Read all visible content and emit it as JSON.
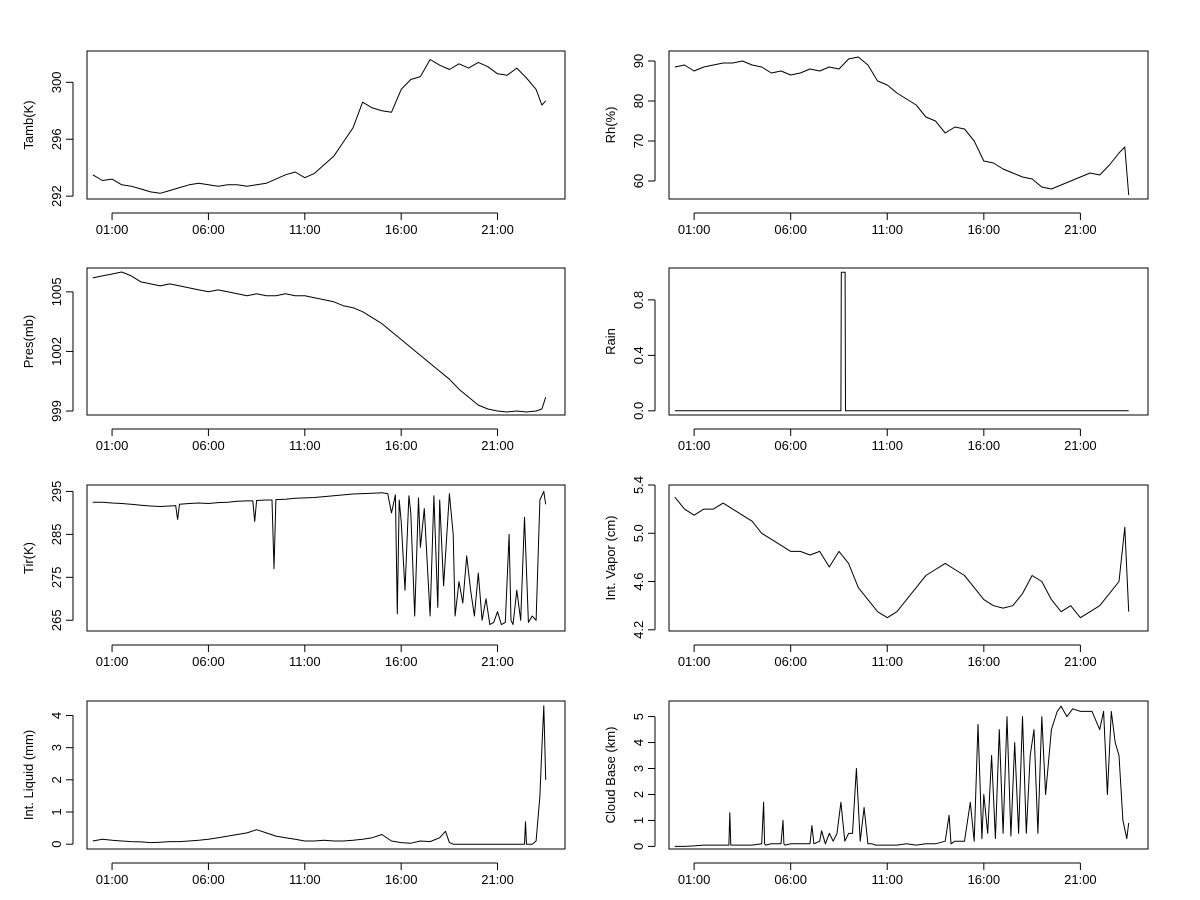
{
  "x_tick_labels": [
    "01:00",
    "06:00",
    "11:00",
    "16:00",
    "21:00"
  ],
  "x_tick_hours": [
    1,
    6,
    11,
    16,
    21
  ],
  "x_range_hours": [
    -0.3,
    24.5
  ],
  "line_color": "#000000",
  "chart_data": [
    {
      "type": "line",
      "ylabel": "Tamb(K)",
      "ylim": [
        291.8,
        302.2
      ],
      "yticks": [
        292,
        296,
        300
      ],
      "ytick_labels": [
        "292",
        "296",
        "300"
      ],
      "x_hours": [
        0.0,
        0.5,
        1.0,
        1.5,
        2.0,
        2.5,
        3.0,
        3.5,
        4.0,
        4.5,
        5.0,
        5.5,
        6.0,
        6.5,
        7.0,
        7.5,
        8.0,
        8.5,
        9.0,
        9.5,
        10.0,
        10.5,
        11.0,
        11.5,
        12.0,
        12.5,
        13.0,
        13.5,
        14.0,
        14.5,
        15.0,
        15.5,
        16.0,
        16.5,
        17.0,
        17.5,
        18.0,
        18.5,
        19.0,
        19.5,
        20.0,
        20.5,
        21.0,
        21.5,
        22.0,
        22.5,
        23.0,
        23.3,
        23.5
      ],
      "values": [
        293.5,
        293.1,
        293.2,
        292.8,
        292.7,
        292.5,
        292.3,
        292.2,
        292.4,
        292.6,
        292.8,
        292.9,
        292.8,
        292.7,
        292.8,
        292.8,
        292.7,
        292.8,
        292.9,
        293.2,
        293.5,
        293.7,
        293.3,
        293.6,
        294.2,
        294.8,
        295.8,
        296.8,
        298.6,
        298.2,
        298.0,
        297.9,
        299.5,
        300.2,
        300.4,
        301.6,
        301.2,
        300.9,
        301.3,
        301.0,
        301.4,
        301.1,
        300.6,
        300.5,
        301.0,
        300.3,
        299.5,
        298.4,
        298.7
      ]
    },
    {
      "type": "line",
      "ylabel": "Rh(%)",
      "ylim": [
        55.5,
        92.5
      ],
      "yticks": [
        60,
        70,
        80,
        90
      ],
      "ytick_labels": [
        "60",
        "70",
        "80",
        "90"
      ],
      "x_hours": [
        0.0,
        0.5,
        1.0,
        1.5,
        2.0,
        2.5,
        3.0,
        3.5,
        4.0,
        4.5,
        5.0,
        5.5,
        6.0,
        6.5,
        7.0,
        7.5,
        8.0,
        8.5,
        9.0,
        9.5,
        10.0,
        10.5,
        11.0,
        11.5,
        12.0,
        12.5,
        13.0,
        13.5,
        14.0,
        14.5,
        15.0,
        15.5,
        16.0,
        16.5,
        17.0,
        17.5,
        18.0,
        18.5,
        19.0,
        19.5,
        20.0,
        20.5,
        21.0,
        21.5,
        22.0,
        22.5,
        23.0,
        23.3,
        23.5
      ],
      "values": [
        88.5,
        89.0,
        87.5,
        88.5,
        89.0,
        89.5,
        89.5,
        90.0,
        89.0,
        88.5,
        87.0,
        87.5,
        86.5,
        87.0,
        88.0,
        87.5,
        88.5,
        88.0,
        90.5,
        91.0,
        89.0,
        85.0,
        84.0,
        82.0,
        80.5,
        79.0,
        76.0,
        75.0,
        72.0,
        73.5,
        73.0,
        70.0,
        65.0,
        64.5,
        63.0,
        62.0,
        61.0,
        60.5,
        58.5,
        58.0,
        59.0,
        60.0,
        61.0,
        62.0,
        61.5,
        64.0,
        67.0,
        68.5,
        56.5
      ]
    },
    {
      "type": "line",
      "ylabel": "Pres(mb)",
      "ylim": [
        998.8,
        1006.2
      ],
      "yticks": [
        999,
        1002,
        1005
      ],
      "ytick_labels": [
        "999",
        "1002",
        "1005"
      ],
      "x_hours": [
        0.0,
        0.5,
        1.0,
        1.5,
        2.0,
        2.5,
        3.0,
        3.5,
        4.0,
        4.5,
        5.0,
        5.5,
        6.0,
        6.5,
        7.0,
        7.5,
        8.0,
        8.5,
        9.0,
        9.5,
        10.0,
        10.5,
        11.0,
        11.5,
        12.0,
        12.5,
        13.0,
        13.5,
        14.0,
        14.5,
        15.0,
        15.5,
        16.0,
        16.5,
        17.0,
        17.5,
        18.0,
        18.5,
        19.0,
        19.5,
        20.0,
        20.5,
        21.0,
        21.5,
        22.0,
        22.5,
        23.0,
        23.3,
        23.5
      ],
      "values": [
        1005.7,
        1005.8,
        1005.9,
        1006.0,
        1005.8,
        1005.5,
        1005.4,
        1005.3,
        1005.4,
        1005.3,
        1005.2,
        1005.1,
        1005.0,
        1005.1,
        1005.0,
        1004.9,
        1004.8,
        1004.9,
        1004.8,
        1004.8,
        1004.9,
        1004.8,
        1004.8,
        1004.7,
        1004.6,
        1004.5,
        1004.3,
        1004.2,
        1004.0,
        1003.7,
        1003.4,
        1003.0,
        1002.6,
        1002.2,
        1001.8,
        1001.4,
        1001.0,
        1000.6,
        1000.1,
        999.7,
        999.3,
        999.1,
        999.0,
        998.95,
        999.0,
        998.95,
        999.0,
        999.1,
        999.7
      ]
    },
    {
      "type": "line",
      "ylabel": "Rain",
      "ylim": [
        -0.03,
        1.03
      ],
      "yticks": [
        0.0,
        0.4,
        0.8
      ],
      "ytick_labels": [
        "0.0",
        "0.4",
        "0.8"
      ],
      "x_hours": [
        0.0,
        8.6,
        8.62,
        8.82,
        8.84,
        23.5
      ],
      "values": [
        0,
        0,
        1,
        1,
        0,
        0
      ]
    },
    {
      "type": "line",
      "ylabel": "Tir(K)",
      "ylim": [
        262.5,
        296.5
      ],
      "yticks": [
        265,
        275,
        285,
        295
      ],
      "ytick_labels": [
        "265",
        "275",
        "285",
        "295"
      ],
      "x_hours": [
        0.0,
        0.5,
        1.0,
        1.5,
        2.0,
        2.5,
        3.0,
        3.5,
        4.0,
        4.3,
        4.4,
        4.5,
        5.0,
        5.5,
        6.0,
        6.5,
        7.0,
        7.5,
        8.0,
        8.3,
        8.4,
        8.5,
        9.0,
        9.3,
        9.4,
        9.5,
        10.0,
        10.5,
        11.0,
        11.5,
        12.0,
        12.5,
        13.0,
        13.5,
        14.0,
        14.5,
        15.0,
        15.3,
        15.5,
        15.7,
        15.8,
        15.9,
        16.0,
        16.2,
        16.4,
        16.5,
        16.7,
        16.9,
        17.0,
        17.2,
        17.5,
        17.7,
        17.9,
        18.0,
        18.2,
        18.5,
        18.7,
        18.8,
        19.0,
        19.2,
        19.4,
        19.6,
        19.8,
        20.0,
        20.2,
        20.4,
        20.6,
        20.8,
        21.0,
        21.2,
        21.4,
        21.6,
        21.7,
        21.8,
        22.0,
        22.2,
        22.4,
        22.6,
        22.8,
        23.0,
        23.2,
        23.4,
        23.5
      ],
      "values": [
        292.5,
        292.5,
        292.3,
        292.2,
        292.0,
        291.8,
        291.6,
        291.5,
        291.6,
        291.7,
        288.5,
        292.0,
        292.2,
        292.3,
        292.2,
        292.4,
        292.5,
        292.7,
        292.8,
        292.8,
        288.0,
        292.9,
        293.0,
        293.0,
        277.0,
        293.1,
        293.2,
        293.4,
        293.5,
        293.6,
        293.8,
        294.0,
        294.2,
        294.4,
        294.5,
        294.6,
        294.7,
        294.5,
        290.0,
        294.2,
        266.5,
        293.0,
        288.0,
        272.0,
        294.0,
        290.0,
        266.0,
        293.5,
        282.0,
        291.0,
        266.0,
        294.0,
        268.0,
        293.0,
        273.0,
        294.5,
        285.0,
        266.0,
        274.0,
        269.0,
        280.0,
        272.0,
        266.0,
        276.0,
        265.0,
        270.0,
        264.0,
        264.5,
        267.0,
        264.0,
        264.5,
        285.0,
        265.0,
        264.0,
        272.0,
        265.0,
        289.0,
        264.5,
        266.0,
        265.0,
        293.0,
        295.0,
        292.0
      ]
    },
    {
      "type": "line",
      "ylabel": "Int. Vapor (cm)",
      "ylim": [
        4.19,
        5.4
      ],
      "yticks": [
        4.2,
        4.6,
        5.0,
        5.4
      ],
      "ytick_labels": [
        "4.2",
        "4.6",
        "5.0",
        "5.4"
      ],
      "x_hours": [
        0.0,
        0.5,
        1.0,
        1.5,
        2.0,
        2.5,
        3.0,
        3.5,
        4.0,
        4.5,
        5.0,
        5.5,
        6.0,
        6.5,
        7.0,
        7.5,
        8.0,
        8.5,
        9.0,
        9.5,
        10.0,
        10.5,
        11.0,
        11.5,
        12.0,
        12.5,
        13.0,
        13.5,
        14.0,
        14.5,
        15.0,
        15.5,
        16.0,
        16.5,
        17.0,
        17.5,
        18.0,
        18.5,
        19.0,
        19.5,
        20.0,
        20.5,
        21.0,
        21.5,
        22.0,
        22.5,
        23.0,
        23.3,
        23.5
      ],
      "values": [
        5.3,
        5.2,
        5.15,
        5.2,
        5.2,
        5.25,
        5.2,
        5.15,
        5.1,
        5.0,
        4.95,
        4.9,
        4.85,
        4.85,
        4.82,
        4.85,
        4.72,
        4.85,
        4.75,
        4.55,
        4.45,
        4.35,
        4.3,
        4.35,
        4.45,
        4.55,
        4.65,
        4.7,
        4.75,
        4.7,
        4.65,
        4.55,
        4.45,
        4.4,
        4.38,
        4.4,
        4.5,
        4.65,
        4.6,
        4.45,
        4.35,
        4.4,
        4.3,
        4.35,
        4.4,
        4.5,
        4.6,
        5.05,
        4.35
      ]
    },
    {
      "type": "line",
      "ylabel": "Int. Liquid (mm)",
      "ylim": [
        -0.15,
        4.45
      ],
      "yticks": [
        0,
        1,
        2,
        3,
        4
      ],
      "ytick_labels": [
        "0",
        "1",
        "2",
        "3",
        "4"
      ],
      "x_hours": [
        0.0,
        0.5,
        1.0,
        1.5,
        2.0,
        2.5,
        3.0,
        3.5,
        4.0,
        4.5,
        5.0,
        5.5,
        6.0,
        6.5,
        7.0,
        7.5,
        8.0,
        8.5,
        9.0,
        9.5,
        10.0,
        10.5,
        11.0,
        11.5,
        12.0,
        12.5,
        13.0,
        13.5,
        14.0,
        14.5,
        15.0,
        15.5,
        16.0,
        16.5,
        17.0,
        17.5,
        18.0,
        18.3,
        18.5,
        18.7,
        19.0,
        19.5,
        20.0,
        20.5,
        21.0,
        21.5,
        22.0,
        22.4,
        22.45,
        22.5,
        22.8,
        23.0,
        23.1,
        23.2,
        23.3,
        23.4,
        23.5
      ],
      "values": [
        0.1,
        0.15,
        0.12,
        0.1,
        0.08,
        0.07,
        0.05,
        0.06,
        0.08,
        0.08,
        0.1,
        0.12,
        0.15,
        0.2,
        0.25,
        0.3,
        0.35,
        0.45,
        0.35,
        0.25,
        0.2,
        0.15,
        0.1,
        0.1,
        0.12,
        0.1,
        0.1,
        0.12,
        0.15,
        0.2,
        0.3,
        0.1,
        0.05,
        0.03,
        0.1,
        0.08,
        0.2,
        0.4,
        0.05,
        0.0,
        0.0,
        0.0,
        0.0,
        0.0,
        0.0,
        0.0,
        0.0,
        0.0,
        0.7,
        0.0,
        0.0,
        0.1,
        0.8,
        1.5,
        3.0,
        4.3,
        2.0
      ]
    },
    {
      "type": "line",
      "ylabel": "Cloud Base (km)",
      "ylim": [
        -0.1,
        5.6
      ],
      "yticks": [
        0,
        1,
        2,
        3,
        4,
        5
      ],
      "ytick_labels": [
        "0",
        "1",
        "2",
        "3",
        "4",
        "5"
      ],
      "x_hours": [
        0.0,
        0.5,
        1.0,
        1.5,
        2.0,
        2.5,
        2.8,
        2.85,
        2.9,
        3.0,
        3.5,
        4.0,
        4.5,
        4.6,
        4.65,
        4.7,
        5.0,
        5.5,
        5.6,
        5.65,
        5.7,
        6.0,
        6.5,
        7.0,
        7.1,
        7.2,
        7.5,
        7.6,
        7.8,
        8.0,
        8.2,
        8.4,
        8.6,
        8.8,
        9.0,
        9.2,
        9.4,
        9.6,
        9.8,
        10.0,
        10.2,
        10.4,
        10.6,
        11.0,
        11.5,
        12.0,
        12.5,
        13.0,
        13.5,
        14.0,
        14.2,
        14.3,
        14.5,
        15.0,
        15.3,
        15.5,
        15.7,
        15.9,
        16.0,
        16.2,
        16.4,
        16.6,
        16.8,
        17.0,
        17.2,
        17.4,
        17.6,
        17.8,
        18.0,
        18.2,
        18.4,
        18.6,
        18.8,
        19.0,
        19.2,
        19.5,
        19.8,
        20.0,
        20.3,
        20.6,
        21.0,
        21.3,
        21.6,
        22.0,
        22.2,
        22.4,
        22.6,
        22.8,
        23.0,
        23.2,
        23.4,
        23.5
      ],
      "values": [
        0.0,
        0.0,
        0.02,
        0.05,
        0.05,
        0.05,
        0.05,
        1.3,
        0.05,
        0.05,
        0.05,
        0.05,
        0.1,
        1.7,
        0.1,
        0.05,
        0.1,
        0.1,
        1.0,
        0.1,
        0.05,
        0.1,
        0.1,
        0.1,
        0.8,
        0.1,
        0.2,
        0.6,
        0.1,
        0.5,
        0.2,
        0.5,
        1.7,
        0.2,
        0.5,
        0.5,
        3.0,
        0.2,
        1.5,
        0.1,
        0.1,
        0.05,
        0.05,
        0.05,
        0.05,
        0.1,
        0.05,
        0.1,
        0.1,
        0.2,
        1.2,
        0.1,
        0.2,
        0.2,
        1.7,
        0.2,
        4.7,
        0.3,
        2.0,
        0.5,
        3.5,
        0.3,
        4.5,
        0.5,
        5.0,
        0.4,
        4.0,
        0.5,
        5.0,
        0.5,
        3.5,
        4.5,
        0.5,
        5.0,
        2.0,
        4.5,
        5.2,
        5.4,
        5.0,
        5.3,
        5.2,
        5.2,
        5.2,
        4.5,
        5.2,
        2.0,
        5.2,
        4.0,
        3.5,
        1.0,
        0.3,
        0.9
      ]
    }
  ]
}
